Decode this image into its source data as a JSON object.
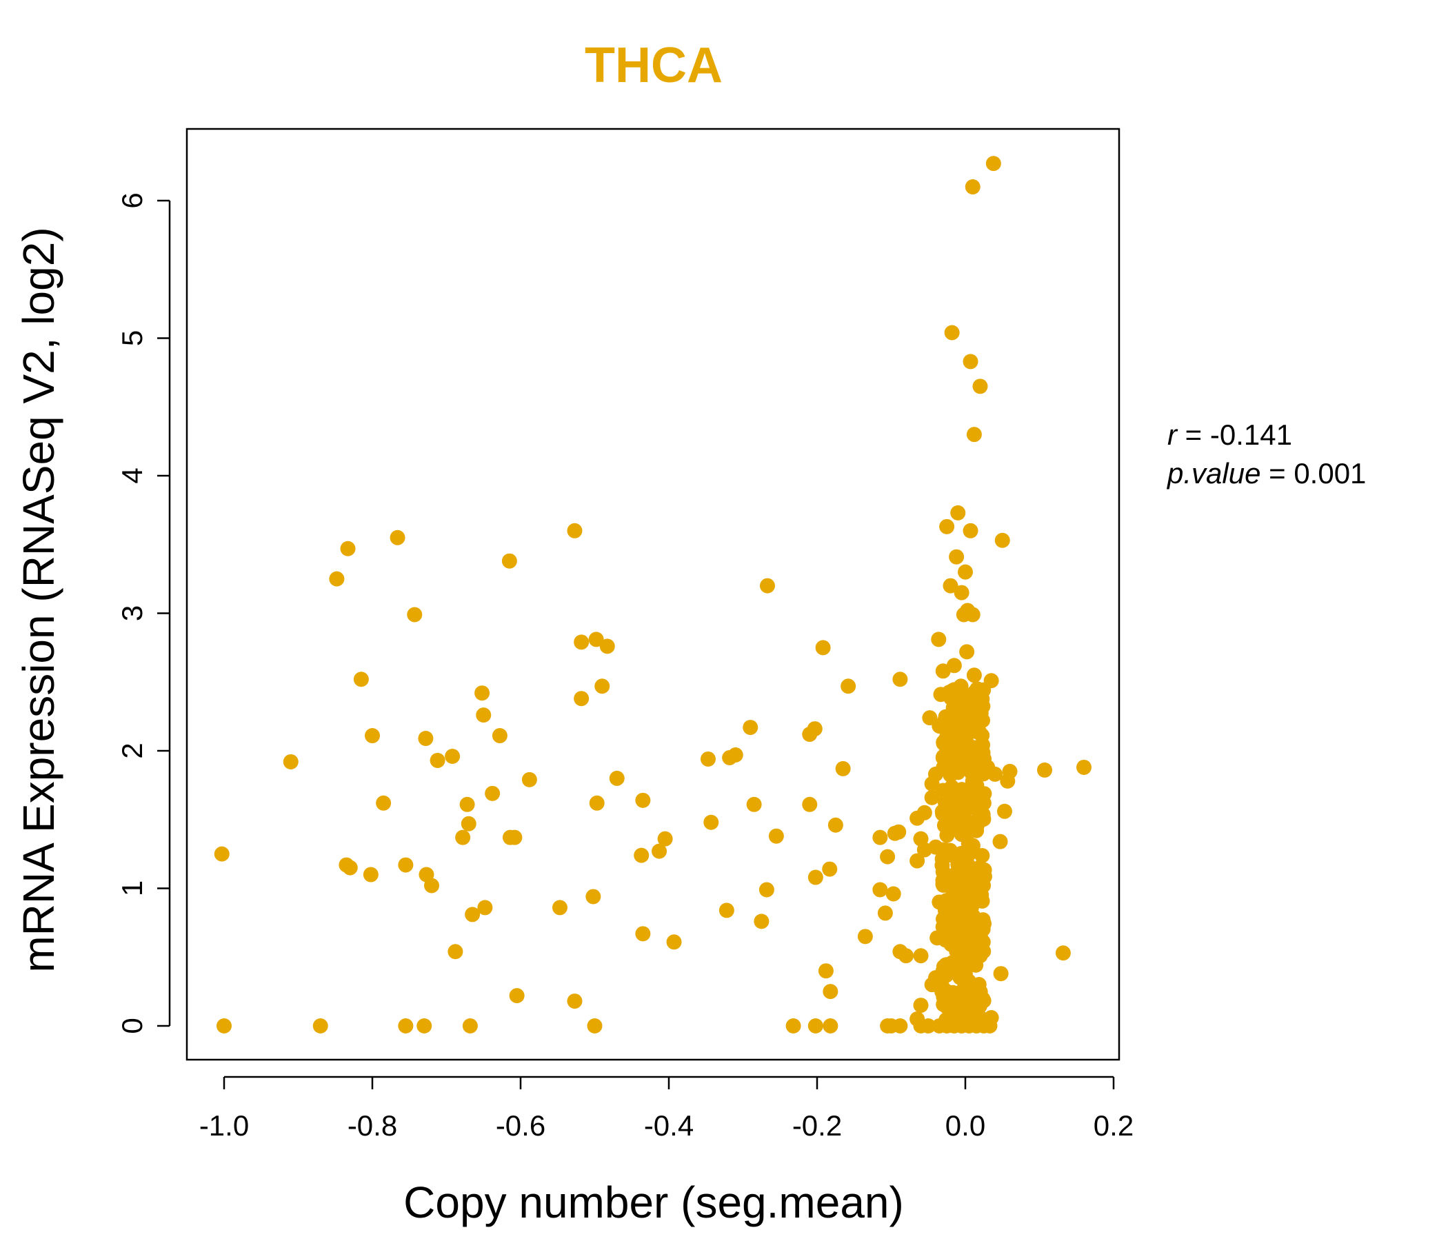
{
  "chart_data": {
    "type": "scatter",
    "title": "THCA",
    "xlabel": "Copy number (seg.mean)",
    "ylabel": "mRNA Expression (RNASeq V2, log2)",
    "xlim": [
      -1.05,
      0.205
    ],
    "ylim": [
      -0.25,
      6.5
    ],
    "xticks": [
      -1.0,
      -0.8,
      -0.6,
      -0.4,
      -0.2,
      0.0,
      0.2
    ],
    "xtick_labels": [
      "-1.0",
      "-0.8",
      "-0.6",
      "-0.4",
      "-0.2",
      "0.0",
      "0.2"
    ],
    "yticks": [
      0,
      1,
      2,
      3,
      4,
      5,
      6
    ],
    "ytick_labels": [
      "0",
      "1",
      "2",
      "3",
      "4",
      "5",
      "6"
    ],
    "point_color": "#E6A800",
    "title_color": "#E6A800",
    "stats": {
      "r_label": "r",
      "r_value": "-0.141",
      "p_label": "p.value",
      "p_value": "0.001"
    },
    "points": [
      {
        "x": 0.038,
        "y": 6.27
      },
      {
        "x": 0.01,
        "y": 6.1
      },
      {
        "x": -0.018,
        "y": 5.04
      },
      {
        "x": 0.007,
        "y": 4.83
      },
      {
        "x": 0.02,
        "y": 4.65
      },
      {
        "x": 0.012,
        "y": 4.3
      },
      {
        "x": -0.01,
        "y": 3.73
      },
      {
        "x": -0.025,
        "y": 3.63
      },
      {
        "x": 0.007,
        "y": 3.6
      },
      {
        "x": 0.05,
        "y": 3.53
      },
      {
        "x": -0.012,
        "y": 3.41
      },
      {
        "x": 0.0,
        "y": 3.3
      },
      {
        "x": -0.02,
        "y": 3.2
      },
      {
        "x": -0.005,
        "y": 3.15
      },
      {
        "x": -0.002,
        "y": 2.99
      },
      {
        "x": 0.01,
        "y": 2.99
      },
      {
        "x": 0.003,
        "y": 3.02
      },
      {
        "x": -0.036,
        "y": 2.81
      },
      {
        "x": 0.002,
        "y": 2.72
      },
      {
        "x": -0.015,
        "y": 2.62
      },
      {
        "x": -0.03,
        "y": 2.58
      },
      {
        "x": 0.012,
        "y": 2.55
      },
      {
        "x": 0.035,
        "y": 2.51
      },
      {
        "x": -0.006,
        "y": 2.47
      },
      {
        "x": 0.016,
        "y": 2.45
      },
      {
        "x": -0.033,
        "y": 2.41
      },
      {
        "x": -0.048,
        "y": 2.24
      },
      {
        "x": 0.01,
        "y": 2.26
      },
      {
        "x": -0.01,
        "y": 2.3
      },
      {
        "x": 0.0,
        "y": 2.18
      },
      {
        "x": -0.035,
        "y": 2.18
      },
      {
        "x": 0.015,
        "y": 2.14
      },
      {
        "x": -0.025,
        "y": 2.01
      },
      {
        "x": 0.005,
        "y": 2.0
      },
      {
        "x": -0.015,
        "y": 1.98
      },
      {
        "x": -0.03,
        "y": 1.95
      },
      {
        "x": 0.03,
        "y": 1.88
      },
      {
        "x": 0.06,
        "y": 1.85
      },
      {
        "x": 0.057,
        "y": 1.78
      },
      {
        "x": 0.04,
        "y": 1.83
      },
      {
        "x": -0.04,
        "y": 1.83
      },
      {
        "x": -0.045,
        "y": 1.76
      },
      {
        "x": 0.01,
        "y": 1.78
      },
      {
        "x": -0.02,
        "y": 1.7
      },
      {
        "x": 0.02,
        "y": 1.65
      },
      {
        "x": -0.045,
        "y": 1.66
      },
      {
        "x": 0.025,
        "y": 1.62
      },
      {
        "x": -0.01,
        "y": 1.6
      },
      {
        "x": 0.053,
        "y": 1.56
      },
      {
        "x": -0.055,
        "y": 1.55
      },
      {
        "x": -0.065,
        "y": 1.51
      },
      {
        "x": 0.0,
        "y": 1.5
      },
      {
        "x": -0.025,
        "y": 1.44
      },
      {
        "x": 0.015,
        "y": 1.42
      },
      {
        "x": -0.09,
        "y": 1.41
      },
      {
        "x": -0.095,
        "y": 1.4
      },
      {
        "x": -0.115,
        "y": 1.37
      },
      {
        "x": -0.06,
        "y": 1.36
      },
      {
        "x": 0.047,
        "y": 1.34
      },
      {
        "x": -0.04,
        "y": 1.3
      },
      {
        "x": -0.055,
        "y": 1.28
      },
      {
        "x": 0.005,
        "y": 1.25
      },
      {
        "x": -0.105,
        "y": 1.23
      },
      {
        "x": -0.065,
        "y": 1.2
      },
      {
        "x": -0.03,
        "y": 1.12
      },
      {
        "x": 0.02,
        "y": 1.1
      },
      {
        "x": -0.005,
        "y": 1.05
      },
      {
        "x": 0.01,
        "y": 1.0
      },
      {
        "x": -0.115,
        "y": 0.99
      },
      {
        "x": -0.097,
        "y": 0.96
      },
      {
        "x": -0.035,
        "y": 0.9
      },
      {
        "x": 0.005,
        "y": 0.88
      },
      {
        "x": -0.108,
        "y": 0.82
      },
      {
        "x": -0.02,
        "y": 0.78
      },
      {
        "x": 0.01,
        "y": 0.72
      },
      {
        "x": -0.028,
        "y": 0.7
      },
      {
        "x": -0.038,
        "y": 0.64
      },
      {
        "x": 0.015,
        "y": 0.6
      },
      {
        "x": -0.005,
        "y": 0.55
      },
      {
        "x": -0.088,
        "y": 0.54
      },
      {
        "x": -0.08,
        "y": 0.51
      },
      {
        "x": -0.06,
        "y": 0.51
      },
      {
        "x": 0.02,
        "y": 0.51
      },
      {
        "x": 0.048,
        "y": 0.38
      },
      {
        "x": -0.01,
        "y": 0.45
      },
      {
        "x": -0.03,
        "y": 0.4
      },
      {
        "x": -0.04,
        "y": 0.35
      },
      {
        "x": -0.045,
        "y": 0.3
      },
      {
        "x": 0.01,
        "y": 0.28
      },
      {
        "x": -0.025,
        "y": 0.25
      },
      {
        "x": -0.06,
        "y": 0.15
      },
      {
        "x": 0.0,
        "y": 0.12
      },
      {
        "x": -0.065,
        "y": 0.05
      },
      {
        "x": 0.035,
        "y": 0.06
      },
      {
        "x": 0.01,
        "y": 0.04
      },
      {
        "x": -0.105,
        "y": 0.0
      },
      {
        "x": -0.1,
        "y": 0.0
      },
      {
        "x": -0.088,
        "y": 0.0
      },
      {
        "x": -0.06,
        "y": 0.0
      },
      {
        "x": -0.05,
        "y": 0.0
      },
      {
        "x": -0.035,
        "y": 0.0
      },
      {
        "x": -0.025,
        "y": 0.0
      },
      {
        "x": -0.015,
        "y": 0.0
      },
      {
        "x": -0.005,
        "y": 0.0
      },
      {
        "x": 0.005,
        "y": 0.0
      },
      {
        "x": 0.015,
        "y": 0.0
      },
      {
        "x": 0.025,
        "y": 0.0
      },
      {
        "x": 0.033,
        "y": 0.0
      },
      {
        "x": -1.003,
        "y": 1.25
      },
      {
        "x": -1.0,
        "y": 0.0
      },
      {
        "x": -0.91,
        "y": 1.92
      },
      {
        "x": -0.87,
        "y": 0.0
      },
      {
        "x": -0.848,
        "y": 3.25
      },
      {
        "x": -0.833,
        "y": 3.47
      },
      {
        "x": -0.835,
        "y": 1.17
      },
      {
        "x": -0.83,
        "y": 1.15
      },
      {
        "x": -0.815,
        "y": 2.52
      },
      {
        "x": -0.8,
        "y": 2.11
      },
      {
        "x": -0.802,
        "y": 1.1
      },
      {
        "x": -0.785,
        "y": 1.62
      },
      {
        "x": -0.766,
        "y": 3.55
      },
      {
        "x": -0.755,
        "y": 1.17
      },
      {
        "x": -0.755,
        "y": 0.0
      },
      {
        "x": -0.743,
        "y": 2.99
      },
      {
        "x": -0.728,
        "y": 2.09
      },
      {
        "x": -0.727,
        "y": 1.1
      },
      {
        "x": -0.73,
        "y": 0.0
      },
      {
        "x": -0.72,
        "y": 1.02
      },
      {
        "x": -0.712,
        "y": 1.93
      },
      {
        "x": -0.692,
        "y": 1.96
      },
      {
        "x": -0.688,
        "y": 0.54
      },
      {
        "x": -0.678,
        "y": 1.37
      },
      {
        "x": -0.672,
        "y": 1.61
      },
      {
        "x": -0.67,
        "y": 1.47
      },
      {
        "x": -0.665,
        "y": 0.81
      },
      {
        "x": -0.668,
        "y": 0.0
      },
      {
        "x": -0.652,
        "y": 2.42
      },
      {
        "x": -0.65,
        "y": 2.26
      },
      {
        "x": -0.648,
        "y": 0.86
      },
      {
        "x": -0.638,
        "y": 1.69
      },
      {
        "x": -0.628,
        "y": 2.11
      },
      {
        "x": -0.615,
        "y": 3.38
      },
      {
        "x": -0.614,
        "y": 1.37
      },
      {
        "x": -0.608,
        "y": 1.37
      },
      {
        "x": -0.605,
        "y": 0.22
      },
      {
        "x": -0.588,
        "y": 1.79
      },
      {
        "x": -0.547,
        "y": 0.86
      },
      {
        "x": -0.527,
        "y": 3.6
      },
      {
        "x": -0.527,
        "y": 0.18
      },
      {
        "x": -0.518,
        "y": 2.79
      },
      {
        "x": -0.518,
        "y": 2.38
      },
      {
        "x": -0.502,
        "y": 0.94
      },
      {
        "x": -0.5,
        "y": 0.0
      },
      {
        "x": -0.498,
        "y": 2.81
      },
      {
        "x": -0.497,
        "y": 1.62
      },
      {
        "x": -0.49,
        "y": 2.47
      },
      {
        "x": -0.483,
        "y": 2.76
      },
      {
        "x": -0.47,
        "y": 1.8
      },
      {
        "x": -0.435,
        "y": 1.64
      },
      {
        "x": -0.435,
        "y": 0.67
      },
      {
        "x": -0.437,
        "y": 1.24
      },
      {
        "x": -0.413,
        "y": 1.27
      },
      {
        "x": -0.405,
        "y": 1.36
      },
      {
        "x": -0.393,
        "y": 0.61
      },
      {
        "x": -0.347,
        "y": 1.94
      },
      {
        "x": -0.343,
        "y": 1.48
      },
      {
        "x": -0.322,
        "y": 0.84
      },
      {
        "x": -0.318,
        "y": 1.95
      },
      {
        "x": -0.31,
        "y": 1.97
      },
      {
        "x": -0.29,
        "y": 2.17
      },
      {
        "x": -0.285,
        "y": 1.61
      },
      {
        "x": -0.275,
        "y": 0.76
      },
      {
        "x": -0.267,
        "y": 3.2
      },
      {
        "x": -0.268,
        "y": 0.99
      },
      {
        "x": -0.255,
        "y": 1.38
      },
      {
        "x": -0.232,
        "y": 0.0
      },
      {
        "x": -0.21,
        "y": 2.12
      },
      {
        "x": -0.21,
        "y": 1.61
      },
      {
        "x": -0.203,
        "y": 2.16
      },
      {
        "x": -0.202,
        "y": 1.08
      },
      {
        "x": -0.202,
        "y": 0.0
      },
      {
        "x": -0.192,
        "y": 2.75
      },
      {
        "x": -0.188,
        "y": 0.4
      },
      {
        "x": -0.183,
        "y": 1.14
      },
      {
        "x": -0.182,
        "y": 0.25
      },
      {
        "x": -0.182,
        "y": 0.0
      },
      {
        "x": -0.175,
        "y": 1.46
      },
      {
        "x": -0.165,
        "y": 1.87
      },
      {
        "x": -0.158,
        "y": 2.47
      },
      {
        "x": -0.135,
        "y": 0.65
      },
      {
        "x": -0.088,
        "y": 2.52
      },
      {
        "x": 0.107,
        "y": 1.86
      },
      {
        "x": 0.132,
        "y": 0.53
      },
      {
        "x": 0.16,
        "y": 1.88
      }
    ],
    "cluster_centers": [
      -0.028,
      -0.018,
      -0.008,
      0.002,
      0.012,
      0.022
    ],
    "cluster_description": "dense column of points near x = 0.0 spanning y = 0 to 2.6"
  }
}
